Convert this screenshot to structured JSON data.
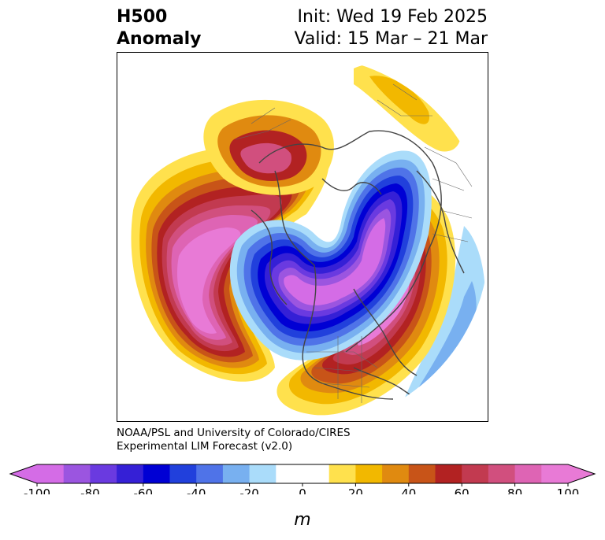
{
  "title": {
    "left_line1": "H500",
    "left_line2": "Anomaly",
    "init": "Init: Wed 19 Feb 2025",
    "valid": "Valid: 15 Mar – 21 Mar"
  },
  "credits": {
    "line1": "NOAA/PSL and University of Colorado/CIRES",
    "line2": "Experimental LIM Forecast (v2.0)"
  },
  "colorbar": {
    "units": "m",
    "extend": "both",
    "levels": [
      -100,
      -90,
      -80,
      -70,
      -60,
      -50,
      -40,
      -30,
      -20,
      -10,
      10,
      20,
      30,
      40,
      50,
      60,
      70,
      80,
      90,
      100
    ],
    "tick_values": [
      -100,
      -80,
      -60,
      -40,
      -20,
      0,
      20,
      40,
      60,
      80,
      100
    ],
    "tick_labels": [
      "-100",
      "-80",
      "-60",
      "-40",
      "-20",
      "0",
      "20",
      "40",
      "60",
      "80",
      "100"
    ],
    "colors": [
      "#d46ce6",
      "#9b55e0",
      "#6a3ae0",
      "#3520d6",
      "#0000d4",
      "#2140dc",
      "#4f73e8",
      "#78b0f0",
      "#aadcfa",
      "#ffffff",
      "#ffe14d",
      "#f2b800",
      "#e08a10",
      "#c85418",
      "#b22222",
      "#c23a50",
      "#d14f7e",
      "#de64b4",
      "#e87ad6"
    ],
    "under_color": "#d46ce6",
    "over_color": "#e87ad6"
  },
  "map": {
    "projection": "north-polar-stereographic",
    "field": "500 hPa geopotential height anomaly",
    "features": [
      {
        "name": "Positive anomaly lobe over North Pacific / Alaska",
        "peak_m": 100
      },
      {
        "name": "Negative anomaly trough across Arctic, Canada and Greenland",
        "peak_m": -100
      },
      {
        "name": "Positive anomaly ridge over North Atlantic / Europe",
        "peak_m": 100
      },
      {
        "name": "Weak positive anomaly over northern Siberia",
        "peak_m": 20
      },
      {
        "name": "Weak negative anomaly off western Europe",
        "peak_m": -40
      }
    ]
  }
}
